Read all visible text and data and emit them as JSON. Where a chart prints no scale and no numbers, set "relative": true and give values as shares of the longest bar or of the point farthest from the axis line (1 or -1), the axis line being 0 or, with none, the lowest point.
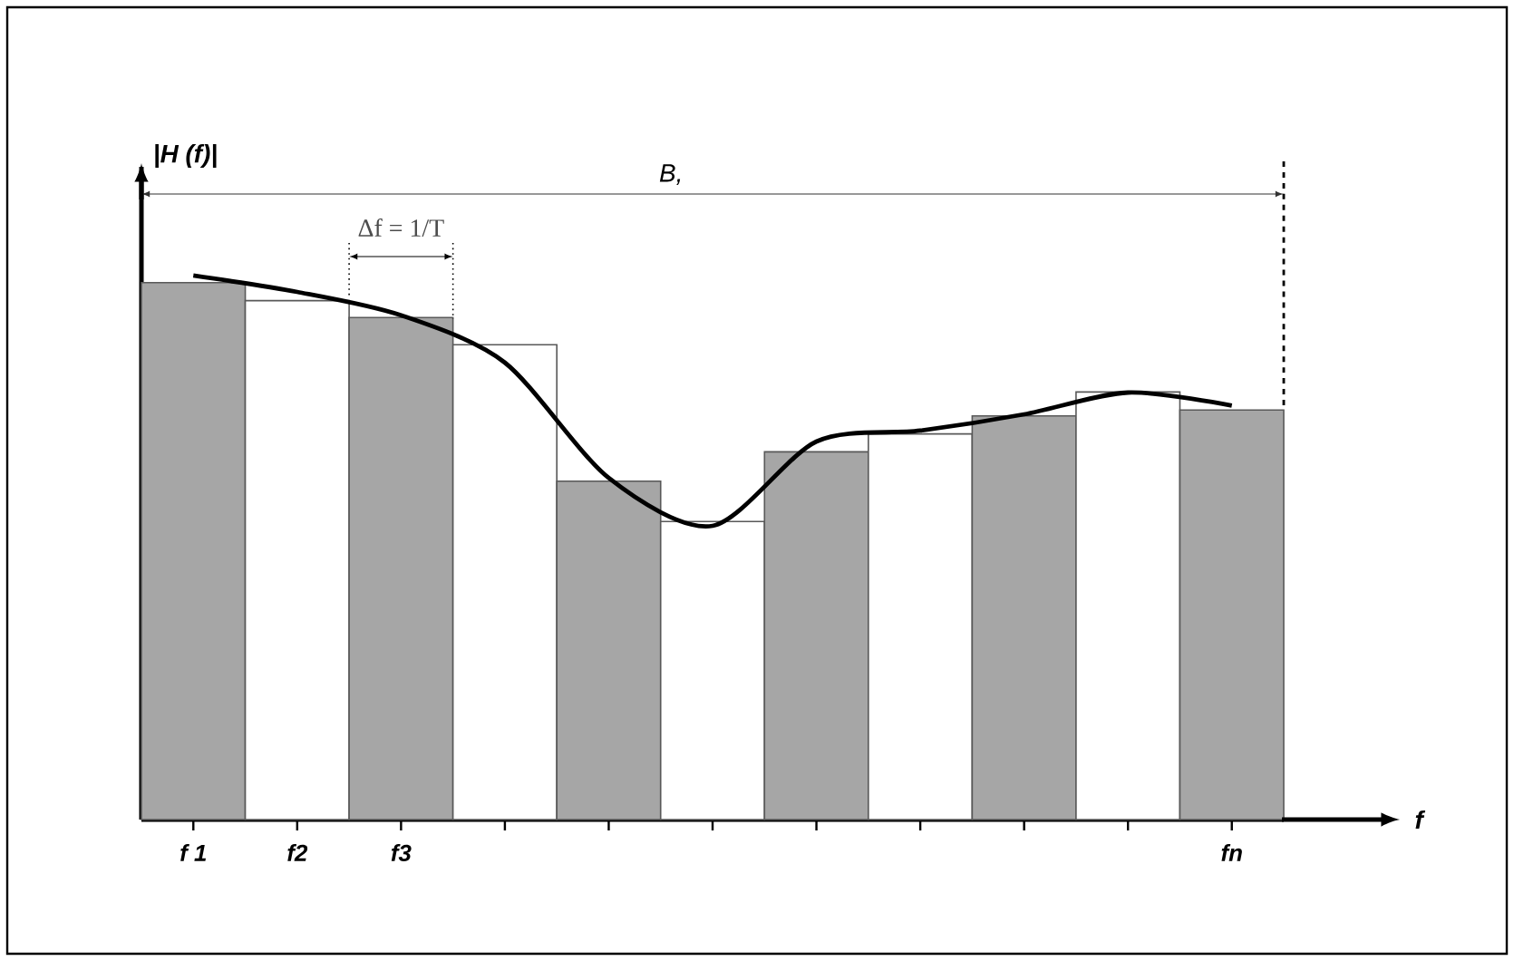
{
  "chart_data": {
    "type": "bar",
    "relative": true,
    "ylabel": "|H (f)|",
    "annotations": [
      "B,",
      "Δf = 1/T",
      "f"
    ],
    "categories": [
      "f 1",
      "f2",
      "f3",
      null,
      null,
      null,
      null,
      null,
      null,
      null,
      "fn"
    ],
    "series": [
      {
        "colors": [
          "#a6a6a6",
          "#ffffff",
          "#a6a6a6",
          "#ffffff",
          "#a6a6a6",
          "#ffffff",
          "#a6a6a6",
          "#ffffff",
          "#a6a6a6",
          "#ffffff",
          "#a6a6a6"
        ],
        "values": [
          0.987,
          0.954,
          0.923,
          0.873,
          0.622,
          0.548,
          0.676,
          0.709,
          0.742,
          0.786,
          0.753
        ]
      },
      {
        "type": "line",
        "color": "#000000",
        "values": [
          1,
          0.97,
          0.927,
          0.84,
          0.628,
          0.54,
          0.695,
          0.715,
          0.745,
          0.785,
          0.761
        ]
      }
    ]
  }
}
